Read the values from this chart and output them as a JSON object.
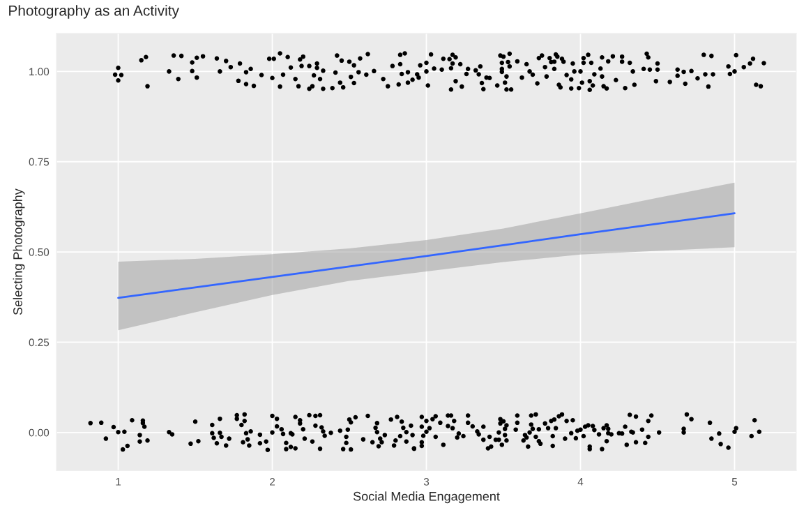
{
  "chart_data": {
    "type": "scatter",
    "title": "Photography as an Activity",
    "xlabel": "Social Media Engagement",
    "ylabel": "Selecting Photography",
    "xlim": [
      0.6,
      5.4
    ],
    "xticks": [
      1,
      2,
      3,
      4,
      5
    ],
    "ylim": [
      -0.105,
      1.105
    ],
    "yticks": [
      {
        "value": 0,
        "label": "0.00"
      },
      {
        "value": 0.25,
        "label": "0.25"
      },
      {
        "value": 0.5,
        "label": "0.50"
      },
      {
        "value": 0.75,
        "label": "0.75"
      },
      {
        "value": 1,
        "label": "1.00"
      }
    ],
    "grid": true,
    "marker": "circle",
    "series": [
      {
        "color": "#000000",
        "x": [
          1.0,
          0.98,
          1.0,
          1.02,
          1.15,
          1.18,
          1.19,
          1.33,
          1.36,
          1.39,
          1.41,
          1.48,
          1.48,
          1.51,
          1.51,
          1.55,
          1.64,
          1.66,
          1.7,
          1.73,
          1.78,
          1.79,
          1.83,
          1.83,
          1.86,
          1.88,
          1.93,
          1.98,
          2.0,
          2.01,
          2.05,
          2.05,
          2.07,
          2.1,
          2.12,
          2.15,
          2.17,
          2.18,
          2.2,
          2.19,
          2.24,
          2.24,
          2.26,
          2.29,
          2.29,
          2.27,
          2.31,
          2.33,
          2.33,
          2.39,
          2.41,
          2.42,
          2.45,
          2.44,
          2.46,
          2.5,
          2.51,
          2.53,
          2.53,
          2.56,
          2.57,
          2.61,
          2.62,
          2.66,
          2.72,
          2.75,
          2.78,
          2.82,
          2.83,
          2.83,
          2.84,
          2.86,
          2.88,
          2.88,
          2.91,
          2.94,
          2.95,
          2.96,
          3.0,
          3.0,
          3.01,
          3.03,
          3.05,
          3.1,
          3.11,
          3.15,
          3.16,
          3.17,
          3.17,
          3.19,
          3.19,
          3.16,
          3.22,
          3.23,
          3.26,
          3.27,
          3.32,
          3.34,
          3.35,
          3.36,
          3.37,
          3.39,
          3.41,
          3.46,
          3.48,
          3.5,
          3.49,
          3.49,
          3.49,
          3.52,
          3.51,
          3.52,
          3.53,
          3.54,
          3.54,
          3.55,
          3.59,
          3.62,
          3.65,
          3.67,
          3.69,
          3.72,
          3.73,
          3.75,
          3.77,
          3.78,
          3.8,
          3.81,
          3.83,
          3.83,
          3.84,
          3.85,
          3.86,
          3.87,
          3.88,
          3.89,
          3.91,
          3.94,
          3.94,
          3.95,
          3.96,
          3.99,
          4.0,
          4.01,
          4.02,
          4.02,
          4.05,
          4.06,
          4.06,
          4.07,
          4.08,
          4.09,
          4.13,
          4.14,
          4.14,
          4.15,
          4.17,
          4.18,
          4.21,
          4.23,
          4.27,
          4.27,
          4.29,
          4.32,
          4.34,
          4.35,
          4.41,
          4.43,
          4.44,
          4.45,
          4.49,
          4.5,
          4.5,
          4.58,
          4.63,
          4.63,
          4.67,
          4.68,
          4.72,
          4.76,
          4.8,
          4.81,
          4.83,
          4.85,
          4.86,
          4.96,
          4.97,
          5.0,
          5.01,
          5.06,
          5.1,
          5.12,
          5.14,
          5.17,
          5.19,
          0.82,
          0.89,
          0.92,
          0.97,
          1.0,
          1.04,
          1.03,
          1.06,
          1.09,
          1.14,
          1.14,
          1.16,
          1.16,
          1.17,
          1.19,
          1.33,
          1.35,
          1.47,
          1.5,
          1.52,
          1.61,
          1.61,
          1.62,
          1.64,
          1.66,
          1.66,
          1.67,
          1.7,
          1.72,
          1.77,
          1.77,
          1.81,
          1.82,
          1.82,
          1.8,
          1.83,
          1.84,
          1.85,
          1.86,
          1.92,
          1.92,
          1.96,
          1.97,
          2.0,
          2.0,
          2.03,
          2.03,
          2.06,
          2.07,
          2.09,
          2.09,
          2.12,
          2.13,
          2.12,
          2.15,
          2.15,
          2.18,
          2.18,
          2.2,
          2.21,
          2.24,
          2.26,
          2.28,
          2.28,
          2.31,
          2.32,
          2.31,
          2.33,
          2.34,
          2.38,
          2.44,
          2.46,
          2.49,
          2.48,
          2.48,
          2.5,
          2.51,
          2.51,
          2.54,
          2.59,
          2.62,
          2.65,
          2.67,
          2.68,
          2.68,
          2.69,
          2.7,
          2.71,
          2.73,
          2.77,
          2.79,
          2.8,
          2.81,
          2.83,
          2.84,
          2.85,
          2.87,
          2.87,
          2.9,
          2.91,
          2.92,
          2.92,
          2.97,
          2.97,
          2.97,
          2.97,
          2.98,
          3.0,
          3.0,
          3.02,
          3.04,
          3.06,
          3.06,
          3.09,
          3.11,
          3.14,
          3.14,
          3.16,
          3.17,
          3.18,
          3.2,
          3.21,
          3.24,
          3.27,
          3.27,
          3.3,
          3.33,
          3.34,
          3.37,
          3.37,
          3.4,
          3.41,
          3.42,
          3.45,
          3.47,
          3.48,
          3.48,
          3.47,
          3.49,
          3.5,
          3.51,
          3.51,
          3.52,
          3.52,
          3.58,
          3.59,
          3.59,
          3.64,
          3.63,
          3.65,
          3.66,
          3.67,
          3.68,
          3.68,
          3.69,
          3.71,
          3.71,
          3.73,
          3.73,
          3.74,
          3.77,
          3.79,
          3.81,
          3.82,
          3.82,
          3.83,
          3.84,
          3.86,
          3.88,
          3.9,
          3.91,
          3.94,
          3.95,
          3.97,
          3.98,
          4.0,
          4.02,
          4.03,
          4.05,
          4.06,
          4.06,
          4.08,
          4.09,
          4.12,
          4.14,
          4.15,
          4.17,
          4.17,
          4.18,
          4.18,
          4.2,
          4.25,
          4.27,
          4.29,
          4.3,
          4.32,
          4.33,
          4.34,
          4.36,
          4.36,
          4.4,
          4.42,
          4.44,
          4.44,
          4.46,
          4.51,
          4.67,
          4.67,
          4.69,
          4.72,
          4.84,
          4.85,
          4.9,
          4.91,
          4.96,
          5.0,
          5.01,
          5.11,
          5.13,
          5.16
        ],
        "values": [
          1.01,
          0.991,
          0.975,
          0.99,
          1.031,
          1.04,
          0.959,
          1.0,
          1.044,
          0.979,
          1.043,
          1.001,
          1.025,
          1.038,
          0.983,
          1.042,
          1.036,
          1.0,
          1.029,
          1.012,
          0.974,
          1.022,
          0.998,
          0.965,
          1.007,
          0.96,
          0.99,
          1.035,
          0.982,
          1.035,
          1.05,
          0.958,
          0.991,
          1.04,
          1.011,
          0.979,
          0.959,
          1.033,
          1.041,
          1.015,
          1.015,
          0.952,
          0.959,
          1.022,
          1.01,
          0.989,
          0.979,
          1.002,
          0.952,
          0.954,
          0.997,
          1.044,
          1.03,
          0.969,
          0.956,
          1.027,
          0.985,
          1.017,
          0.968,
          0.998,
          1.036,
          0.991,
          1.048,
          1.001,
          0.979,
          0.959,
          1.015,
          0.964,
          1.02,
          1.046,
          0.993,
          1.05,
          0.998,
          0.969,
          0.977,
          0.992,
          0.983,
          1.017,
          1.024,
          1.0,
          0.961,
          1.047,
          1.008,
          1.005,
          1.035,
          1.034,
          1.009,
          1.046,
          1.022,
          1.039,
          0.973,
          0.95,
          1.02,
          0.958,
          0.993,
          1.007,
          1.003,
          0.992,
          1.014,
          0.968,
          0.951,
          0.983,
          0.982,
          0.961,
          1.044,
          1.041,
          1.024,
          1.007,
          0.999,
          0.986,
          0.969,
          0.95,
          1.026,
          1.049,
          1.014,
          0.95,
          1.028,
          0.983,
          1.02,
          1.0,
          0.991,
          0.967,
          1.037,
          1.044,
          1.012,
          0.986,
          1.037,
          1.026,
          1.007,
          1.027,
          1.047,
          1.041,
          0.963,
          0.956,
          1.035,
          1.027,
          0.99,
          0.978,
          0.953,
          1.022,
          1.0,
          0.954,
          1.0,
          0.969,
          1.037,
          1.024,
          1.046,
          0.949,
          0.973,
          1.024,
          0.961,
          0.992,
          1.008,
          1.039,
          0.986,
          0.959,
          0.953,
          1.028,
          1.042,
          0.976,
          1.041,
          1.027,
          0.954,
          1.024,
          1.0,
          0.963,
          1.007,
          1.049,
          1.039,
          1.005,
          0.973,
          1.022,
          1.005,
          0.971,
          0.988,
          1.005,
          0.999,
          0.966,
          1.001,
          0.981,
          1.046,
          0.992,
          0.958,
          1.043,
          0.992,
          1.014,
          0.993,
          1.0,
          1.045,
          1.012,
          1.022,
          1.035,
          0.963,
          0.959,
          1.023,
          0.026,
          0.027,
          -0.017,
          0.015,
          0.001,
          0.002,
          -0.047,
          -0.037,
          0.034,
          -0.007,
          -0.025,
          0.033,
          0.026,
          0.016,
          -0.022,
          0.001,
          -0.005,
          -0.031,
          0.03,
          -0.024,
          0.021,
          -0.002,
          -0.015,
          -0.03,
          0.038,
          -0.001,
          -0.012,
          -0.036,
          -0.017,
          0.038,
          0.048,
          -0.027,
          0.05,
          0.032,
          0.021,
          -0.002,
          -0.019,
          -0.036,
          0.003,
          -0.006,
          -0.03,
          -0.025,
          -0.048,
          0.0,
          0.046,
          0.038,
          0.017,
          0.009,
          -0.004,
          -0.046,
          -0.029,
          -0.002,
          -0.005,
          -0.04,
          -0.044,
          0.043,
          0.034,
          0.025,
          0.009,
          -0.017,
          0.048,
          -0.025,
          0.019,
          0.046,
          0.048,
          0.014,
          -0.045,
          0.003,
          -0.009,
          -0.001,
          0.005,
          -0.046,
          0.008,
          -0.012,
          -0.029,
          0.036,
          0.028,
          -0.047,
          0.042,
          -0.019,
          0.046,
          -0.027,
          0.013,
          0.026,
          0.001,
          -0.038,
          -0.017,
          -0.027,
          -0.007,
          0.036,
          -0.036,
          -0.022,
          0.043,
          -0.01,
          0.03,
          0.013,
          0.001,
          -0.025,
          0.019,
          -0.007,
          -0.045,
          -0.044,
          0.043,
          0.016,
          -0.027,
          -0.037,
          -0.009,
          0.032,
          0.002,
          0.012,
          0.037,
          0.045,
          -0.012,
          0.027,
          -0.034,
          0.047,
          0.018,
          0.047,
          0.012,
          0.032,
          -0.014,
          -0.003,
          -0.01,
          0.047,
          0.027,
          0.017,
          0.003,
          -0.005,
          0.016,
          -0.02,
          -0.044,
          -0.012,
          -0.039,
          -0.02,
          -0.02,
          0.037,
          0.025,
          0.0,
          -0.034,
          0.031,
          0.01,
          -0.007,
          0.02,
          -0.022,
          0.008,
          0.027,
          0.047,
          -0.007,
          -0.022,
          -0.014,
          -0.039,
          0.0,
          0.047,
          0.022,
          0.01,
          0.05,
          -0.012,
          0.009,
          -0.024,
          -0.031,
          0.025,
          0.012,
          0.032,
          -0.01,
          -0.037,
          0.036,
          0.012,
          0.045,
          0.05,
          -0.017,
          0.032,
          -0.002,
          0.034,
          -0.016,
          0.005,
          0.008,
          -0.01,
          0.016,
          0.02,
          -0.046,
          -0.039,
          0.018,
          0.007,
          -0.005,
          -0.046,
          0.012,
          -0.024,
          0.02,
          0.01,
          -0.002,
          -0.005,
          -0.002,
          -0.003,
          0.016,
          -0.034,
          0.049,
          0.002,
          0.0,
          -0.027,
          0.044,
          0.008,
          -0.029,
          -0.012,
          0.032,
          0.047,
          0.0,
          0.01,
          0.0,
          0.05,
          0.037,
          0.027,
          -0.017,
          -0.003,
          -0.032,
          -0.042,
          0.002,
          0.012,
          -0.01,
          0.034,
          0.002
        ]
      },
      {
        "type": "line",
        "color": "#3366ff",
        "line_style": "solid",
        "marker": "none",
        "x": [
          1,
          1.5,
          2,
          2.5,
          3,
          3.5,
          4,
          4.5,
          5
        ],
        "values": [
          0.373,
          0.402,
          0.431,
          0.46,
          0.489,
          0.519,
          0.549,
          0.578,
          0.607
        ],
        "lower": [
          0.283,
          0.333,
          0.381,
          0.42,
          0.446,
          0.472,
          0.493,
          0.503,
          0.513
        ],
        "upper": [
          0.473,
          0.481,
          0.494,
          0.51,
          0.533,
          0.565,
          0.607,
          0.65,
          0.692
        ]
      }
    ]
  }
}
